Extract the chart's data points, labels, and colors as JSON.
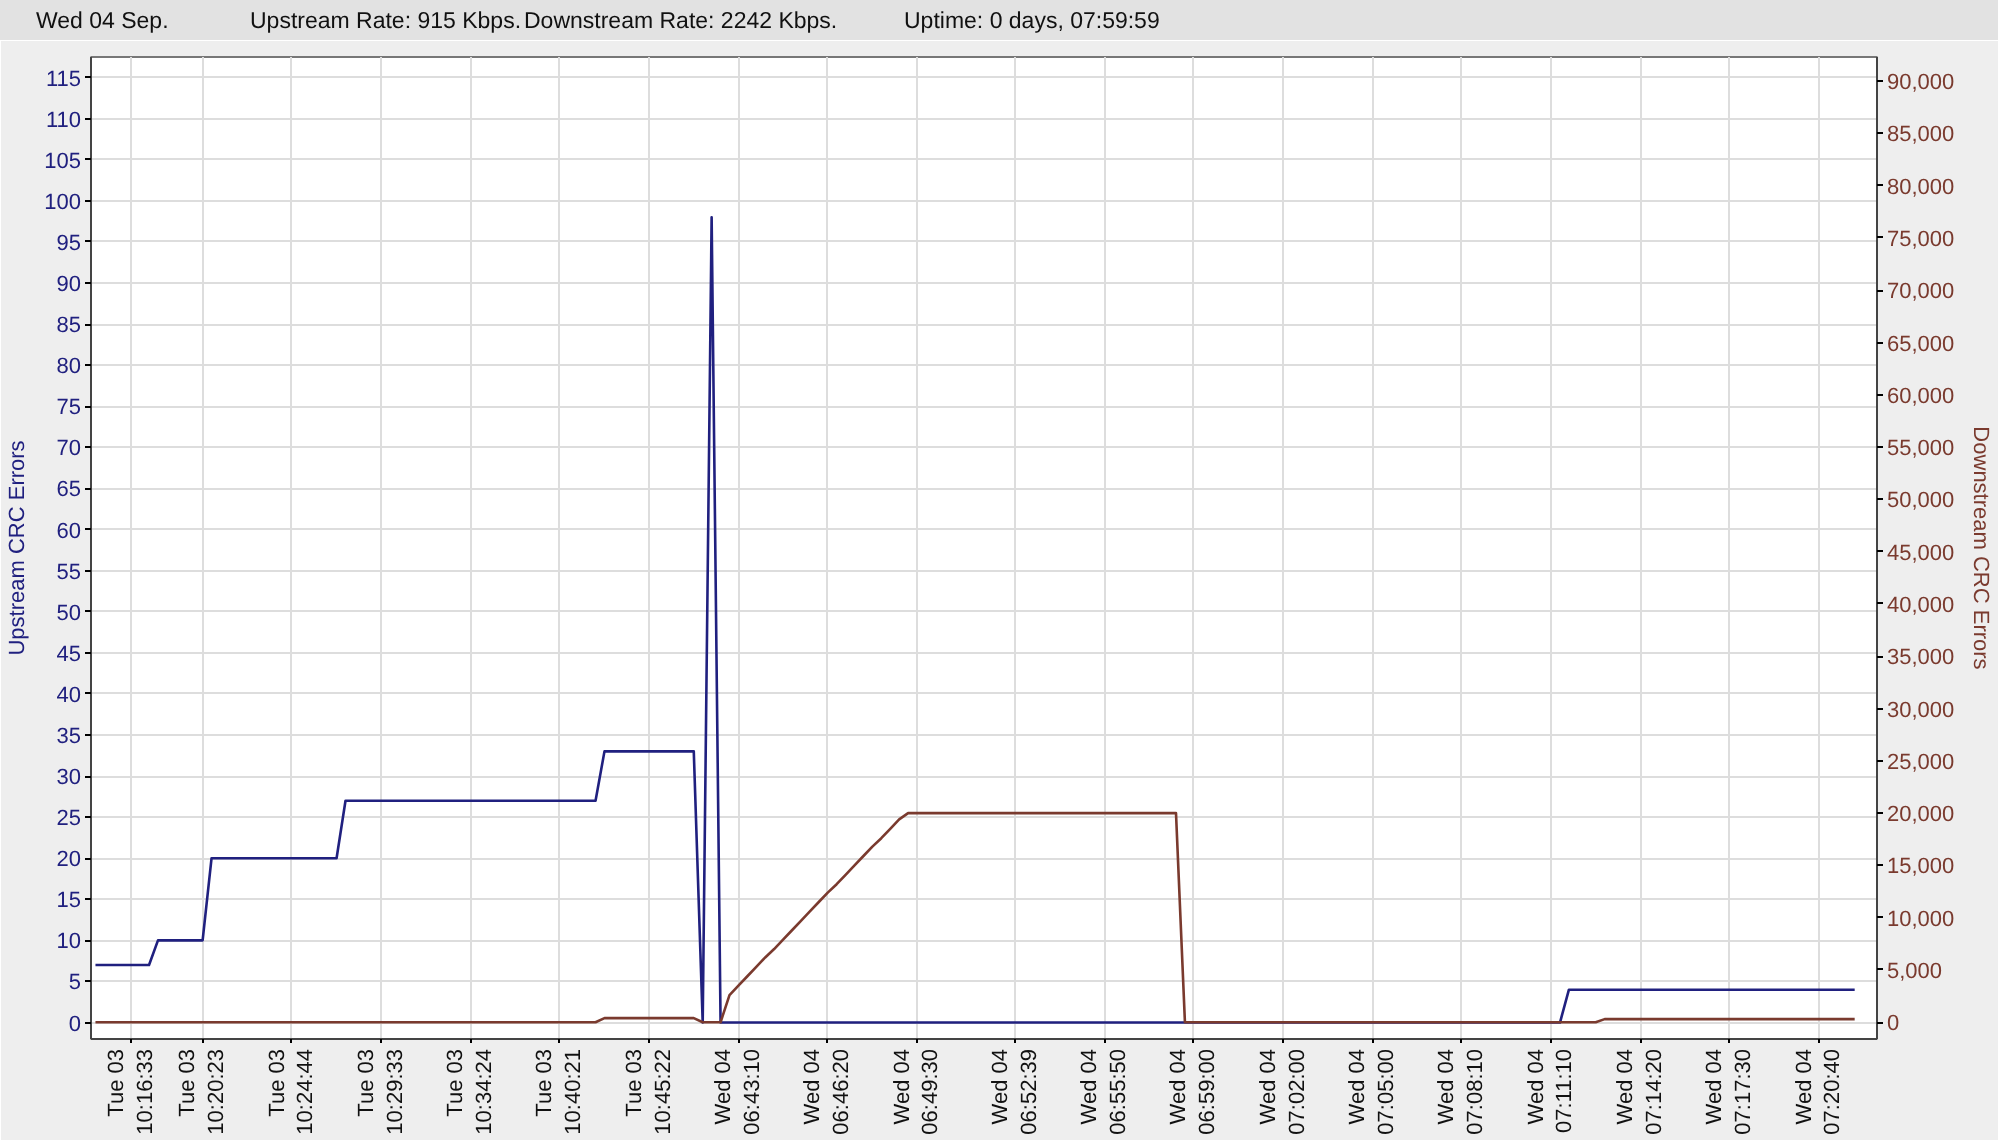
{
  "chart_data": {
    "type": "line",
    "title": "Wed 04 Sep.",
    "annotations": [
      "Upstream Rate: 915 Kbps.",
      "Downstream Rate: 2242 Kbps.",
      "Uptime: 0 days, 07:59:59"
    ],
    "ylabel": "Upstream CRC Errors",
    "y2label": "Downstream CRC Errors",
    "categories": [
      null,
      null,
      null,
      null,
      "Tue 03\n10:16:33",
      null,
      null,
      null,
      null,
      null,
      null,
      null,
      "Tue 03\n10:20:23",
      null,
      null,
      null,
      null,
      null,
      null,
      null,
      null,
      null,
      "Tue 03\n10:24:44",
      null,
      null,
      null,
      null,
      null,
      null,
      null,
      null,
      null,
      "Tue 03\n10:29:33",
      null,
      null,
      null,
      null,
      null,
      null,
      null,
      null,
      null,
      "Tue 03\n10:34:24",
      null,
      null,
      null,
      null,
      null,
      null,
      null,
      null,
      null,
      "Tue 03\n10:40:21",
      null,
      null,
      null,
      null,
      null,
      null,
      null,
      null,
      null,
      "Tue 03\n10:45:22",
      null,
      null,
      null,
      null,
      null,
      null,
      null,
      null,
      null,
      "Wed 04\n06:43:10",
      null,
      null,
      null,
      null,
      null,
      null,
      null,
      null,
      null,
      "Wed 04\n06:46:20",
      null,
      null,
      null,
      null,
      null,
      null,
      null,
      null,
      null,
      "Wed 04\n06:49:30",
      null,
      null,
      null,
      null,
      null,
      null,
      null,
      null,
      null,
      null,
      "Wed 04\n06:52:39",
      null,
      null,
      null,
      null,
      null,
      null,
      null,
      null,
      null,
      "Wed 04\n06:55:50",
      null,
      null,
      null,
      null,
      null,
      null,
      null,
      null,
      null,
      "Wed 04\n06:59:00",
      null,
      null,
      null,
      null,
      null,
      null,
      null,
      null,
      null,
      "Wed 04\n07:02:00",
      null,
      null,
      null,
      null,
      null,
      null,
      null,
      null,
      null,
      "Wed 04\n07:05:00",
      null,
      null,
      null,
      null,
      null,
      null,
      null,
      null,
      null,
      "Wed 04\n07:08:10",
      null,
      null,
      null,
      null,
      null,
      null,
      null,
      null,
      null,
      "Wed 04\n07:11:10",
      null,
      null,
      null,
      null,
      null,
      null,
      null,
      null,
      null,
      "Wed 04\n07:14:20",
      null,
      null,
      null,
      null,
      null,
      null,
      null,
      null,
      null,
      "Wed 04\n07:17:30",
      null,
      null,
      null,
      null,
      null,
      null,
      null,
      null,
      null,
      "Wed 04\n07:20:40",
      null,
      null,
      null,
      null,
      null,
      null
    ],
    "ylim": [
      -2,
      117.5
    ],
    "yticks": [
      0,
      5,
      10,
      15,
      20,
      25,
      30,
      35,
      40,
      45,
      50,
      55,
      60,
      65,
      70,
      75,
      80,
      85,
      90,
      95,
      100,
      105,
      110,
      115
    ],
    "y2lim": [
      -1600,
      92300
    ],
    "y2ticks": [
      0,
      {
        "value": 5000,
        "label": "5,000"
      },
      {
        "value": 10000,
        "label": "10,000"
      },
      {
        "value": 15000,
        "label": "15,000"
      },
      {
        "value": 20000,
        "label": "20,000"
      },
      {
        "value": 25000,
        "label": "25,000"
      },
      {
        "value": 30000,
        "label": "30,000"
      },
      {
        "value": 35000,
        "label": "35,000"
      },
      {
        "value": 40000,
        "label": "40,000"
      },
      {
        "value": 45000,
        "label": "45,000"
      },
      {
        "value": 50000,
        "label": "50,000"
      },
      {
        "value": 55000,
        "label": "55,000"
      },
      {
        "value": 60000,
        "label": "60,000"
      },
      {
        "value": 65000,
        "label": "65,000"
      },
      {
        "value": 70000,
        "label": "70,000"
      },
      {
        "value": 75000,
        "label": "75,000"
      },
      {
        "value": 80000,
        "label": "80,000"
      },
      {
        "value": 85000,
        "label": "85,000"
      },
      {
        "value": 90000,
        "label": "90,000"
      }
    ],
    "grid": true,
    "series": [
      {
        "color": "#20207f",
        "values": [
          7,
          7,
          7,
          7,
          7,
          7,
          7,
          10,
          10,
          10,
          10,
          10,
          10,
          20,
          20,
          20,
          20,
          20,
          20,
          20,
          20,
          20,
          20,
          20,
          20,
          20,
          20,
          20,
          27,
          27,
          27,
          27,
          27,
          27,
          27,
          27,
          27,
          27,
          27,
          27,
          27,
          27,
          27,
          27,
          27,
          27,
          27,
          27,
          27,
          27,
          27,
          27,
          27,
          27,
          27,
          27,
          27,
          33,
          33,
          33,
          33,
          33,
          33,
          33,
          33,
          33,
          33,
          33,
          0,
          98,
          0,
          0,
          0,
          0,
          0,
          0,
          0,
          0,
          0,
          0,
          0,
          0,
          0,
          0,
          0,
          0,
          0,
          0,
          0,
          0,
          0,
          0,
          0,
          0,
          0,
          0,
          0,
          0,
          0,
          0,
          0,
          0,
          0,
          0,
          0,
          0,
          0,
          0,
          0,
          0,
          0,
          0,
          0,
          0,
          0,
          0,
          0,
          0,
          0,
          0,
          0,
          0,
          0,
          0,
          0,
          0,
          0,
          0,
          0,
          0,
          0,
          0,
          0,
          0,
          0,
          0,
          0,
          0,
          0,
          0,
          0,
          0,
          0,
          0,
          0,
          0,
          0,
          0,
          0,
          0,
          0,
          0,
          0,
          0,
          0,
          0,
          0,
          0,
          0,
          0,
          0,
          0,
          0,
          0,
          0,
          4,
          4,
          4,
          4,
          4,
          4,
          4,
          4,
          4,
          4,
          4,
          4,
          4,
          4,
          4,
          4,
          4,
          4,
          4,
          4,
          4,
          4,
          4,
          4,
          4,
          4,
          4,
          4,
          4,
          4,
          4,
          4,
          4,
          null,
          null
        ]
      },
      {
        "color": "#7a3a2e",
        "axis": "y2",
        "values": [
          0,
          0,
          0,
          0,
          0,
          0,
          0,
          0,
          0,
          0,
          0,
          0,
          0,
          0,
          0,
          0,
          0,
          0,
          0,
          0,
          0,
          0,
          0,
          0,
          0,
          0,
          0,
          0,
          0,
          0,
          0,
          0,
          0,
          0,
          0,
          0,
          0,
          0,
          0,
          0,
          0,
          0,
          0,
          0,
          0,
          0,
          0,
          0,
          0,
          0,
          0,
          0,
          0,
          0,
          0,
          0,
          0,
          400,
          400,
          400,
          400,
          400,
          400,
          400,
          400,
          400,
          400,
          400,
          0,
          0,
          0,
          2600,
          3500,
          4400,
          5300,
          6200,
          7000,
          7900,
          8800,
          9700,
          10600,
          11500,
          12400,
          13200,
          14100,
          15000,
          15900,
          16800,
          17600,
          18500,
          19400,
          20000,
          20000,
          20000,
          20000,
          20000,
          20000,
          20000,
          20000,
          20000,
          20000,
          20000,
          20000,
          20000,
          20000,
          20000,
          20000,
          20000,
          20000,
          20000,
          20000,
          20000,
          20000,
          20000,
          20000,
          20000,
          20000,
          20000,
          20000,
          20000,
          20000,
          20000,
          0,
          0,
          0,
          0,
          0,
          0,
          0,
          0,
          0,
          0,
          0,
          0,
          0,
          0,
          0,
          0,
          0,
          0,
          0,
          0,
          0,
          0,
          0,
          0,
          0,
          0,
          0,
          0,
          0,
          0,
          0,
          0,
          0,
          0,
          0,
          0,
          0,
          0,
          0,
          0,
          0,
          0,
          0,
          0,
          0,
          0,
          0,
          300,
          300,
          300,
          300,
          300,
          300,
          300,
          300,
          300,
          300,
          300,
          300,
          300,
          300,
          300,
          300,
          300,
          300,
          300,
          300,
          300,
          300,
          300,
          300,
          300,
          300,
          300,
          300,
          300,
          null,
          null
        ]
      }
    ]
  }
}
